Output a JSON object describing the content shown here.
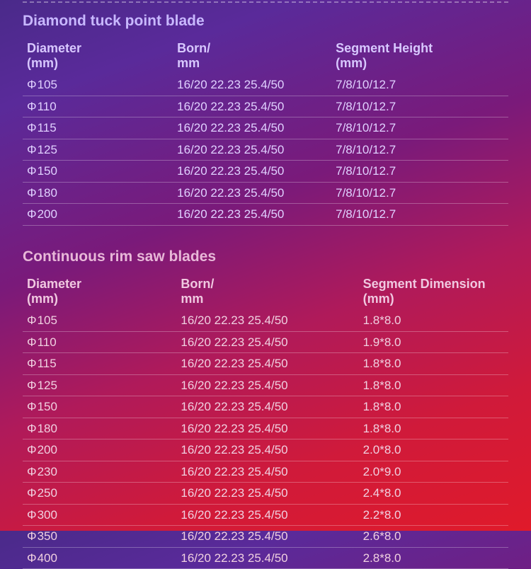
{
  "tables": [
    {
      "title": "Diamond tuck point blade",
      "title_class": "",
      "section_class": "",
      "col_widths": [
        "214px",
        "226px",
        "240px"
      ],
      "headers": [
        "Diameter\n(mm)",
        "Born/\nmm",
        "Segment Height\n (mm)"
      ],
      "phi": "Φ",
      "rows": [
        {
          "diameter": "105",
          "born": "16/20 22.23 25.4/50",
          "seg": "7/8/10/12.7"
        },
        {
          "diameter": "110",
          "born": "16/20 22.23 25.4/50",
          "seg": "7/8/10/12.7"
        },
        {
          "diameter": "115",
          "born": "16/20 22.23 25.4/50",
          "seg": "7/8/10/12.7"
        },
        {
          "diameter": "125",
          "born": "16/20 22.23 25.4/50",
          "seg": "7/8/10/12.7"
        },
        {
          "diameter": "150",
          "born": "16/20 22.23 25.4/50",
          "seg": "7/8/10/12.7"
        },
        {
          "diameter": "180",
          "born": "16/20 22.23 25.4/50",
          "seg": "7/8/10/12.7"
        },
        {
          "diameter": "200",
          "born": "16/20 22.23 25.4/50",
          "seg": "7/8/10/12.7"
        }
      ]
    },
    {
      "title": "Continuous rim saw blades",
      "title_class": "sec2",
      "section_class": "sec2",
      "col_widths": [
        "218px",
        "258px",
        "200px"
      ],
      "headers": [
        "Diameter\n(mm)",
        "Born/\nmm",
        "Segment Dimension\n (mm)"
      ],
      "phi": "Φ",
      "rows": [
        {
          "diameter": "105",
          "born": "16/20 22.23 25.4/50",
          "seg": "1.8*8.0"
        },
        {
          "diameter": "110",
          "born": "16/20 22.23 25.4/50",
          "seg": "1.9*8.0"
        },
        {
          "diameter": "115",
          "born": "16/20 22.23 25.4/50",
          "seg": "1.8*8.0"
        },
        {
          "diameter": "125",
          "born": "16/20 22.23 25.4/50",
          "seg": "1.8*8.0"
        },
        {
          "diameter": "150",
          "born": "16/20 22.23 25.4/50",
          "seg": "1.8*8.0"
        },
        {
          "diameter": "180",
          "born": "16/20 22.23 25.4/50",
          "seg": "1.8*8.0"
        },
        {
          "diameter": "200",
          "born": "16/20 22.23 25.4/50",
          "seg": "2.0*8.0"
        },
        {
          "diameter": "230",
          "born": "16/20 22.23 25.4/50",
          "seg": "2.0*9.0"
        },
        {
          "diameter": "250",
          "born": "16/20 22.23 25.4/50",
          "seg": "2.4*8.0"
        },
        {
          "diameter": "300",
          "born": "16/20 22.23 25.4/50",
          "seg": "2.2*8.0"
        },
        {
          "diameter": "350",
          "born": "16/20 22.23 25.4/50",
          "seg": "2.6*8.0"
        },
        {
          "diameter": "400",
          "born": "16/20 22.23 25.4/50",
          "seg": "2.8*8.0"
        }
      ]
    }
  ]
}
